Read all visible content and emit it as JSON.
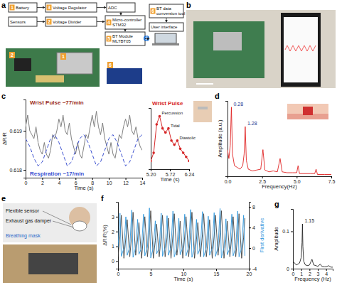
{
  "panel_labels": [
    "a",
    "b",
    "c",
    "d",
    "e",
    "f",
    "g"
  ],
  "diagram": {
    "nodes": [
      {
        "lines": [
          "Battery"
        ],
        "badge": "1"
      },
      {
        "lines": [
          "Voltage Regulator"
        ],
        "badge": "3"
      },
      {
        "lines": [
          "ADC"
        ]
      },
      {
        "lines": [
          "Sensors"
        ]
      },
      {
        "lines": [
          "Voltage Divider"
        ],
        "badge": "2"
      },
      {
        "lines": [
          "Micro-controller",
          "STM32"
        ],
        "badge": "4"
      },
      {
        "lines": [
          "BT Module",
          "MLTBT05"
        ],
        "badge": "5"
      },
      {
        "lines": [
          "BT data",
          "conversion tool"
        ],
        "badge": "6"
      },
      {
        "lines": [
          "User interface"
        ]
      }
    ],
    "photo_badges": [
      "2",
      "1",
      "6"
    ]
  },
  "photo_e": {
    "labels": [
      "Flexible sensor",
      "Exhaust gas damper",
      "Breathing mask"
    ]
  },
  "chart_data": [
    {
      "type": "line",
      "x_label": "Time (s)",
      "y_label": "ΔR/R",
      "xlim": [
        0,
        14
      ],
      "xticks": [
        0,
        2,
        4,
        6,
        8,
        10,
        12,
        14
      ],
      "ylim": [
        0.6178,
        0.6198
      ],
      "yticks": [
        0.618,
        0.619
      ],
      "series": [
        {
          "name": "Wrist Pulse ~77/min",
          "color": "#7f7f7f",
          "line_style": "solid",
          "x": [
            0,
            0.25,
            0.5,
            0.75,
            1,
            1.25,
            1.5,
            1.75,
            2,
            2.25,
            2.5,
            2.75,
            3,
            3.25,
            3.5,
            3.75,
            4,
            4.25,
            4.5,
            4.75,
            5,
            5.25,
            5.5,
            5.75,
            6,
            6.25,
            6.5,
            6.75,
            7,
            7.25,
            7.5,
            7.75,
            8,
            8.25,
            8.5,
            8.75,
            9,
            9.25,
            9.5,
            9.75,
            10,
            10.25,
            10.5,
            10.75,
            11,
            11.25,
            11.5,
            11.75,
            12,
            12.25,
            12.5,
            12.75,
            13,
            13.25,
            13.5,
            13.75,
            14
          ],
          "values": [
            0.6191,
            0.6194,
            0.619,
            0.6189,
            0.6188,
            0.6191,
            0.6187,
            0.6185,
            0.6184,
            0.6187,
            0.6184,
            0.6183,
            0.6185,
            0.6189,
            0.6188,
            0.619,
            0.6193,
            0.6191,
            0.6194,
            0.619,
            0.6189,
            0.6192,
            0.6188,
            0.6186,
            0.6184,
            0.6187,
            0.6184,
            0.6183,
            0.6186,
            0.6189,
            0.6188,
            0.6191,
            0.6194,
            0.6191,
            0.6195,
            0.6191,
            0.6189,
            0.6192,
            0.6188,
            0.6186,
            0.6184,
            0.6187,
            0.6184,
            0.6183,
            0.6186,
            0.6189,
            0.6188,
            0.6191,
            0.6193,
            0.6191,
            0.6194,
            0.619,
            0.6189,
            0.6191,
            0.6188,
            0.6186,
            0.6185
          ]
        },
        {
          "name": "Respiration ~17/min",
          "color": "#3a4fd0",
          "line_style": "dashed",
          "x": [
            0,
            0.5,
            1,
            1.5,
            2,
            2.5,
            3,
            3.5,
            4,
            4.5,
            5,
            5.5,
            6,
            6.5,
            7,
            7.5,
            8,
            8.5,
            9,
            9.5,
            10,
            10.5,
            11,
            11.5,
            12,
            12.5,
            13,
            13.5,
            14
          ],
          "values": [
            0.6188,
            0.6186,
            0.6183,
            0.6181,
            0.6182,
            0.6185,
            0.6188,
            0.6189,
            0.6187,
            0.6184,
            0.6181,
            0.6182,
            0.6185,
            0.6188,
            0.6189,
            0.6187,
            0.6184,
            0.6181,
            0.6182,
            0.6185,
            0.6188,
            0.6189,
            0.6187,
            0.6184,
            0.6181,
            0.6182,
            0.6185,
            0.6188,
            0.6189
          ]
        }
      ]
    },
    {
      "type": "line",
      "title": "Wrist Pulse",
      "x_label": "Time (s)",
      "xlim": [
        5.2,
        6.24
      ],
      "xticks": [
        {
          "value": 5.2,
          "label": "5.20"
        },
        5.72,
        6.24
      ],
      "ylim": [
        0.6182,
        0.6197
      ],
      "tick_labels": "x",
      "color": "#d62728",
      "marker": "circle",
      "x": [
        5.2,
        5.28,
        5.36,
        5.44,
        5.52,
        5.6,
        5.68,
        5.76,
        5.84,
        5.92,
        6.0,
        6.08,
        6.16,
        6.24
      ],
      "values": [
        0.6184,
        0.6186,
        0.6193,
        0.6195,
        0.6192,
        0.6191,
        0.6192,
        0.6189,
        0.6188,
        0.6189,
        0.6187,
        0.6186,
        0.6185,
        0.6184
      ],
      "annotations": [
        {
          "text": "Percussion",
          "x": 5.44,
          "y": 0.6195
        },
        {
          "text": "Tidal",
          "x": 5.68,
          "y": 0.6192
        },
        {
          "text": "Diastolic",
          "x": 5.92,
          "y": 0.6189
        }
      ]
    },
    {
      "type": "line",
      "x_label": "Frequency(Hz)",
      "y_label": "Amplitude (a.u.)",
      "xlim": [
        0,
        7.5
      ],
      "xticks": [
        {
          "value": 0,
          "label": "0.0"
        },
        2.5,
        {
          "value": 5,
          "label": "5.0"
        },
        7.5
      ],
      "ylim": [
        0,
        0.85
      ],
      "tick_labels": "x",
      "color": "#e02020",
      "x": [
        0,
        0.1,
        0.2,
        0.28,
        0.36,
        0.5,
        0.7,
        0.9,
        1.1,
        1.2,
        1.28,
        1.36,
        1.5,
        1.8,
        2.1,
        2.4,
        2.56,
        2.7,
        3.0,
        3.3,
        3.6,
        3.8,
        3.95,
        4.3,
        4.7,
        5.0,
        5.1,
        5.2,
        5.6,
        6.0,
        6.3,
        6.4,
        6.5,
        7.0,
        7.5
      ],
      "values": [
        0.3,
        0.2,
        0.35,
        0.78,
        0.25,
        0.12,
        0.1,
        0.08,
        0.12,
        0.25,
        0.56,
        0.18,
        0.08,
        0.06,
        0.07,
        0.08,
        0.3,
        0.07,
        0.05,
        0.06,
        0.05,
        0.2,
        0.05,
        0.04,
        0.04,
        0.04,
        0.12,
        0.03,
        0.03,
        0.03,
        0.03,
        0.08,
        0.02,
        0.02,
        0.02
      ],
      "annotations": [
        {
          "text": "0.28",
          "x": 0.28,
          "y": 0.78
        },
        {
          "text": "1.28",
          "x": 1.28,
          "y": 0.56
        }
      ]
    },
    {
      "type": "line",
      "x_label": "Time (s)",
      "xlim": [
        0,
        20
      ],
      "xticks": [
        0,
        5,
        10,
        15,
        20
      ],
      "ylim": [
        -0.5,
        4
      ],
      "yticks": [
        0,
        1,
        2,
        3
      ],
      "y2lim": [
        -4,
        9
      ],
      "y2ticks": [
        -4,
        0,
        4,
        8
      ],
      "series": [
        {
          "name": "ΔR/R(%)",
          "color": "#444444",
          "x": [
            0,
            0.3,
            0.5,
            0.9,
            1.2,
            1.4,
            1.8,
            2.1,
            2.3,
            2.7,
            3.0,
            3.2,
            3.6,
            3.9,
            4.1,
            4.5,
            4.8,
            5.0,
            5.4,
            5.7,
            5.9,
            6.3,
            6.6,
            6.8,
            7.2,
            7.5,
            7.7,
            8.1,
            8.4,
            8.6,
            9.0,
            9.3,
            9.5,
            9.9,
            10.2,
            10.4,
            10.8,
            11.1,
            11.3,
            11.7,
            12.0,
            12.2,
            12.6,
            12.9,
            13.1,
            13.5,
            13.8,
            14.0,
            14.4,
            14.7,
            14.9,
            15.3,
            15.6,
            15.8,
            16.2,
            16.5,
            16.7,
            17.1,
            17.4,
            17.6,
            18.0,
            18.3,
            18.5,
            18.9,
            19.2,
            19.4
          ],
          "values": [
            0.3,
            1.7,
            3.1,
            0.2,
            1.6,
            2.8,
            0.3,
            1.8,
            3.3,
            0.4,
            1.5,
            2.6,
            0.2,
            1.7,
            3.0,
            0.3,
            1.9,
            3.4,
            0.2,
            1.4,
            2.5,
            0.3,
            1.7,
            3.1,
            0.3,
            1.6,
            2.9,
            0.2,
            1.8,
            3.2,
            0.4,
            1.5,
            2.7,
            0.2,
            1.7,
            3.0,
            0.3,
            1.9,
            3.3,
            0.2,
            1.5,
            2.6,
            0.3,
            1.8,
            3.2,
            0.3,
            1.6,
            2.8,
            0.2,
            1.7,
            3.1,
            0.4,
            1.9,
            3.4,
            0.2,
            1.5,
            2.7,
            0.3,
            1.7,
            3.0,
            0.3,
            1.8,
            3.2,
            0.2,
            1.6,
            2.9
          ]
        },
        {
          "name": "First derivative",
          "color": "#3399dd",
          "axis": "y2",
          "x": [
            0,
            0.3,
            0.5,
            0.9,
            1.2,
            1.4,
            1.8,
            2.1,
            2.3,
            2.7,
            3.0,
            3.2,
            3.6,
            3.9,
            4.1,
            4.5,
            4.8,
            5.0,
            5.4,
            5.7,
            5.9,
            6.3,
            6.6,
            6.8,
            7.2,
            7.5,
            7.7,
            8.1,
            8.4,
            8.6,
            9.0,
            9.3,
            9.5,
            9.9,
            10.2,
            10.4,
            10.8,
            11.1,
            11.3,
            11.7,
            12.0,
            12.2,
            12.6,
            12.9,
            13.1,
            13.5,
            13.8,
            14.0,
            14.4,
            14.7,
            14.9,
            15.3,
            15.6,
            15.8,
            16.2,
            16.5,
            16.7,
            17.1,
            17.4,
            17.6,
            18.0,
            18.3,
            18.5,
            18.9,
            19.2,
            19.4
          ],
          "values": [
            0.1,
            6.8,
            -1.6,
            0.0,
            6.1,
            -1.4,
            0.2,
            7.4,
            -1.8,
            0.1,
            5.6,
            -1.2,
            0.0,
            6.6,
            -1.5,
            0.2,
            7.8,
            -1.9,
            0.1,
            5.3,
            -1.1,
            0.0,
            6.8,
            -1.6,
            0.1,
            6.3,
            -1.4,
            0.2,
            7.2,
            -1.7,
            0.0,
            5.8,
            -1.3,
            0.1,
            6.6,
            -1.5,
            0.2,
            7.5,
            -1.8,
            0.0,
            5.6,
            -1.2,
            0.1,
            7.1,
            -1.7,
            0.1,
            6.2,
            -1.4,
            0.0,
            6.9,
            -1.6,
            0.2,
            7.7,
            -1.9,
            0.1,
            5.7,
            -1.3,
            0.0,
            6.6,
            -1.5,
            0.1,
            7.2,
            -1.7,
            0.0,
            6.4,
            -1.5
          ]
        }
      ]
    },
    {
      "type": "line",
      "x_label": "Frequency (Hz)",
      "y_label": "Amplitude",
      "xlim": [
        0,
        4.8
      ],
      "xticks": [
        0,
        1,
        2,
        3,
        4
      ],
      "ylim": [
        0,
        0.16
      ],
      "yticks": [
        0,
        0.1
      ],
      "color": "#222222",
      "x": [
        0,
        0.2,
        0.4,
        0.6,
        0.8,
        1.0,
        1.1,
        1.15,
        1.2,
        1.3,
        1.5,
        1.8,
        2.0,
        2.3,
        2.5,
        2.8,
        3.0,
        3.3,
        3.5,
        3.8,
        4.0,
        4.3,
        4.6,
        4.8
      ],
      "values": [
        0.02,
        0.015,
        0.01,
        0.012,
        0.015,
        0.03,
        0.07,
        0.12,
        0.06,
        0.02,
        0.01,
        0.008,
        0.01,
        0.025,
        0.01,
        0.008,
        0.006,
        0.012,
        0.006,
        0.005,
        0.005,
        0.008,
        0.004,
        0.004
      ],
      "annotations": [
        {
          "text": "1.15",
          "x": 1.15,
          "y": 0.12
        }
      ]
    }
  ]
}
